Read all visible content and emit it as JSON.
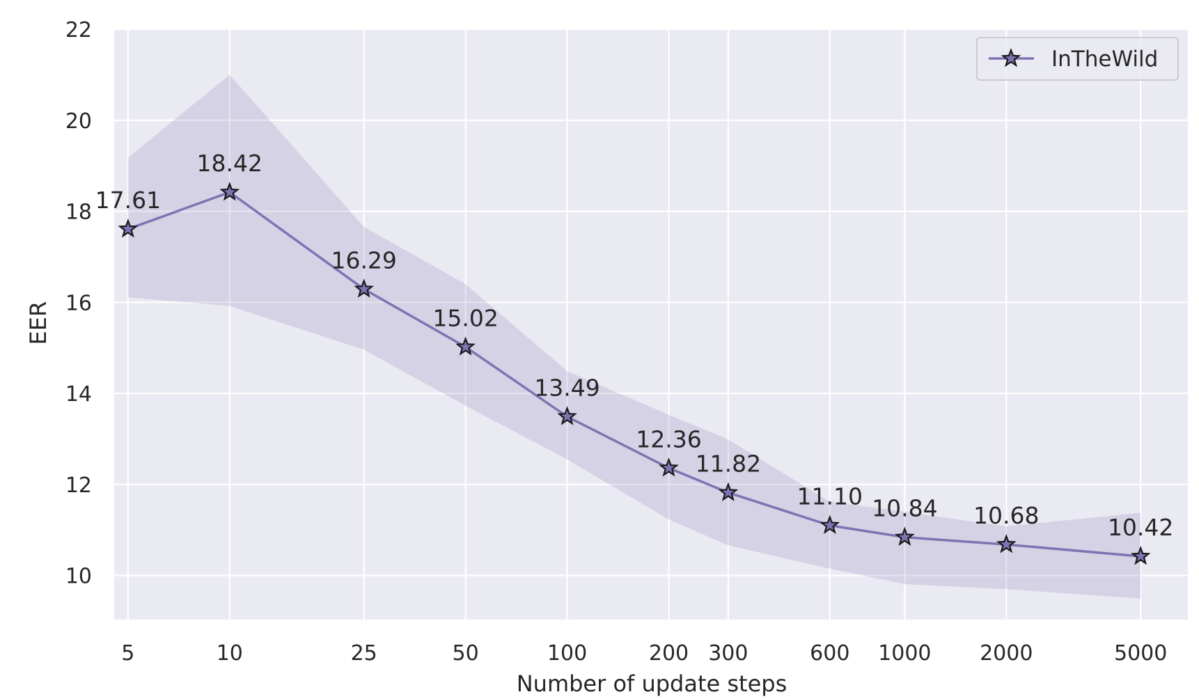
{
  "chart_data": {
    "type": "line",
    "xlabel": "Number of update steps",
    "ylabel": "EER",
    "xscale": "log",
    "xlim": [
      4.55,
      6900
    ],
    "ylim": [
      9.03,
      22
    ],
    "grid": true,
    "legend_position": "top-right",
    "x": [
      5,
      10,
      25,
      50,
      100,
      200,
      300,
      600,
      1000,
      2000,
      5000
    ],
    "x_tick_labels": [
      "5",
      "10",
      "25",
      "50",
      "100",
      "200",
      "300",
      "600",
      "1000",
      "2000",
      "5000"
    ],
    "y_ticks": [
      10,
      12,
      14,
      16,
      18,
      20,
      22
    ],
    "y_tick_labels": [
      "10",
      "12",
      "14",
      "16",
      "18",
      "20",
      "22"
    ],
    "series": [
      {
        "name": "InTheWild",
        "values": [
          17.61,
          18.42,
          16.29,
          15.02,
          13.49,
          12.36,
          11.82,
          11.1,
          10.84,
          10.68,
          10.42
        ],
        "data_labels": [
          "17.61",
          "18.42",
          "16.29",
          "15.02",
          "13.49",
          "12.36",
          "11.82",
          "11.10",
          "10.84",
          "10.68",
          "10.42"
        ],
        "band_upper": [
          19.18,
          21.0,
          17.66,
          16.4,
          14.49,
          13.53,
          12.99,
          11.62,
          11.4,
          11.08,
          11.38
        ],
        "band_lower": [
          16.11,
          15.92,
          14.96,
          13.73,
          12.55,
          11.23,
          10.66,
          10.15,
          9.81,
          9.7,
          9.49
        ],
        "marker": "star",
        "color": "#8172b3"
      }
    ],
    "colors": {
      "background": "#eaeaf2",
      "grid": "#ffffff",
      "text": "#262626",
      "marker_edge": "#1a1a1a"
    }
  }
}
